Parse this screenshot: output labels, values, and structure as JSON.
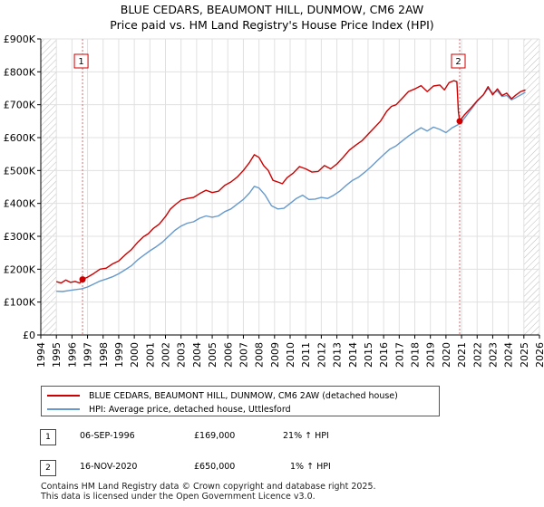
{
  "title_line1": "BLUE CEDARS, BEAUMONT HILL, DUNMOW, CM6 2AW",
  "title_line2": "Price paid vs. HM Land Registry's House Price Index (HPI)",
  "chart_data": {
    "type": "line",
    "xlim": [
      1994.0,
      2026.0
    ],
    "ylim": [
      0,
      900000
    ],
    "x_ticks": [
      1994,
      1995,
      1996,
      1997,
      1998,
      1999,
      2000,
      2001,
      2002,
      2003,
      2004,
      2005,
      2006,
      2007,
      2008,
      2009,
      2010,
      2011,
      2012,
      2013,
      2014,
      2015,
      2016,
      2017,
      2018,
      2019,
      2020,
      2021,
      2022,
      2023,
      2024,
      2025,
      2026
    ],
    "y_ticks": [
      {
        "value": 0,
        "label": "£0"
      },
      {
        "value": 100000,
        "label": "£100K"
      },
      {
        "value": 200000,
        "label": "£200K"
      },
      {
        "value": 300000,
        "label": "£300K"
      },
      {
        "value": 400000,
        "label": "£400K"
      },
      {
        "value": 500000,
        "label": "£500K"
      },
      {
        "value": 600000,
        "label": "£600K"
      },
      {
        "value": 700000,
        "label": "£700K"
      },
      {
        "value": 800000,
        "label": "£800K"
      },
      {
        "value": 900000,
        "label": "£900K"
      }
    ],
    "hatched_before": 1995.0,
    "hatched_after": 2025.0,
    "series": [
      {
        "name": "BLUE CEDARS, BEAUMONT HILL, DUNMOW, CM6 2AW (detached house)",
        "color": "#cc0000",
        "points": [
          [
            1995.0,
            162000
          ],
          [
            1995.3,
            158000
          ],
          [
            1995.6,
            167000
          ],
          [
            1995.9,
            160000
          ],
          [
            1996.2,
            163000
          ],
          [
            1996.5,
            158000
          ],
          [
            1996.68,
            169000
          ],
          [
            1997.0,
            176000
          ],
          [
            1997.4,
            187000
          ],
          [
            1997.8,
            200000
          ],
          [
            1998.2,
            203000
          ],
          [
            1998.6,
            216000
          ],
          [
            1999.0,
            225000
          ],
          [
            1999.4,
            243000
          ],
          [
            1999.8,
            259000
          ],
          [
            2000.2,
            281000
          ],
          [
            2000.6,
            299000
          ],
          [
            2000.9,
            308000
          ],
          [
            2001.2,
            323000
          ],
          [
            2001.6,
            337000
          ],
          [
            2002.0,
            360000
          ],
          [
            2002.3,
            382000
          ],
          [
            2002.6,
            395000
          ],
          [
            2003.0,
            410000
          ],
          [
            2003.4,
            415000
          ],
          [
            2003.8,
            418000
          ],
          [
            2004.2,
            430000
          ],
          [
            2004.6,
            440000
          ],
          [
            2005.0,
            433000
          ],
          [
            2005.4,
            437000
          ],
          [
            2005.8,
            455000
          ],
          [
            2006.2,
            465000
          ],
          [
            2006.6,
            480000
          ],
          [
            2007.0,
            500000
          ],
          [
            2007.4,
            525000
          ],
          [
            2007.7,
            548000
          ],
          [
            2008.0,
            540000
          ],
          [
            2008.3,
            515000
          ],
          [
            2008.6,
            500000
          ],
          [
            2008.9,
            470000
          ],
          [
            2009.2,
            465000
          ],
          [
            2009.5,
            460000
          ],
          [
            2009.8,
            478000
          ],
          [
            2010.2,
            492000
          ],
          [
            2010.6,
            512000
          ],
          [
            2011.0,
            505000
          ],
          [
            2011.4,
            495000
          ],
          [
            2011.8,
            497000
          ],
          [
            2012.2,
            515000
          ],
          [
            2012.6,
            505000
          ],
          [
            2013.0,
            520000
          ],
          [
            2013.4,
            540000
          ],
          [
            2013.8,
            562000
          ],
          [
            2014.2,
            577000
          ],
          [
            2014.6,
            590000
          ],
          [
            2015.0,
            610000
          ],
          [
            2015.4,
            630000
          ],
          [
            2015.8,
            650000
          ],
          [
            2016.2,
            680000
          ],
          [
            2016.5,
            695000
          ],
          [
            2016.8,
            700000
          ],
          [
            2017.2,
            720000
          ],
          [
            2017.6,
            740000
          ],
          [
            2018.0,
            748000
          ],
          [
            2018.4,
            758000
          ],
          [
            2018.8,
            740000
          ],
          [
            2019.2,
            757000
          ],
          [
            2019.6,
            760000
          ],
          [
            2019.9,
            745000
          ],
          [
            2020.2,
            767000
          ],
          [
            2020.5,
            773000
          ],
          [
            2020.7,
            770000
          ],
          [
            2020.8,
            678000
          ],
          [
            2020.88,
            650000
          ],
          [
            2021.2,
            670000
          ],
          [
            2021.6,
            690000
          ],
          [
            2022.0,
            712000
          ],
          [
            2022.4,
            730000
          ],
          [
            2022.7,
            755000
          ],
          [
            2023.0,
            730000
          ],
          [
            2023.3,
            748000
          ],
          [
            2023.6,
            728000
          ],
          [
            2023.9,
            735000
          ],
          [
            2024.2,
            718000
          ],
          [
            2024.5,
            730000
          ],
          [
            2024.8,
            740000
          ],
          [
            2025.1,
            745000
          ]
        ]
      },
      {
        "name": "HPI: Average price, detached house, Uttlesford",
        "color": "#6699cc",
        "points": [
          [
            1995.0,
            133000
          ],
          [
            1995.4,
            132000
          ],
          [
            1995.8,
            135000
          ],
          [
            1996.2,
            138000
          ],
          [
            1996.6,
            140000
          ],
          [
            1997.0,
            146000
          ],
          [
            1997.4,
            155000
          ],
          [
            1997.8,
            164000
          ],
          [
            1998.2,
            170000
          ],
          [
            1998.6,
            177000
          ],
          [
            1999.0,
            186000
          ],
          [
            1999.4,
            198000
          ],
          [
            1999.8,
            210000
          ],
          [
            2000.2,
            228000
          ],
          [
            2000.6,
            242000
          ],
          [
            2001.0,
            256000
          ],
          [
            2001.4,
            268000
          ],
          [
            2001.8,
            282000
          ],
          [
            2002.2,
            300000
          ],
          [
            2002.6,
            318000
          ],
          [
            2003.0,
            331000
          ],
          [
            2003.4,
            340000
          ],
          [
            2003.8,
            344000
          ],
          [
            2004.2,
            355000
          ],
          [
            2004.6,
            362000
          ],
          [
            2005.0,
            358000
          ],
          [
            2005.4,
            362000
          ],
          [
            2005.8,
            375000
          ],
          [
            2006.2,
            383000
          ],
          [
            2006.6,
            398000
          ],
          [
            2007.0,
            412000
          ],
          [
            2007.4,
            432000
          ],
          [
            2007.7,
            452000
          ],
          [
            2008.0,
            447000
          ],
          [
            2008.4,
            425000
          ],
          [
            2008.8,
            393000
          ],
          [
            2009.2,
            383000
          ],
          [
            2009.6,
            385000
          ],
          [
            2010.0,
            400000
          ],
          [
            2010.4,
            415000
          ],
          [
            2010.8,
            425000
          ],
          [
            2011.2,
            412000
          ],
          [
            2011.6,
            413000
          ],
          [
            2012.0,
            418000
          ],
          [
            2012.4,
            415000
          ],
          [
            2012.8,
            425000
          ],
          [
            2013.2,
            438000
          ],
          [
            2013.6,
            455000
          ],
          [
            2014.0,
            470000
          ],
          [
            2014.4,
            480000
          ],
          [
            2014.8,
            495000
          ],
          [
            2015.2,
            512000
          ],
          [
            2015.6,
            530000
          ],
          [
            2016.0,
            548000
          ],
          [
            2016.4,
            565000
          ],
          [
            2016.8,
            575000
          ],
          [
            2017.2,
            590000
          ],
          [
            2017.6,
            605000
          ],
          [
            2018.0,
            618000
          ],
          [
            2018.4,
            630000
          ],
          [
            2018.8,
            620000
          ],
          [
            2019.2,
            632000
          ],
          [
            2019.6,
            625000
          ],
          [
            2020.0,
            615000
          ],
          [
            2020.4,
            630000
          ],
          [
            2020.88,
            642000
          ],
          [
            2021.2,
            660000
          ],
          [
            2021.6,
            685000
          ],
          [
            2022.0,
            710000
          ],
          [
            2022.4,
            730000
          ],
          [
            2022.7,
            750000
          ],
          [
            2023.0,
            735000
          ],
          [
            2023.3,
            742000
          ],
          [
            2023.6,
            725000
          ],
          [
            2023.9,
            728000
          ],
          [
            2024.2,
            715000
          ],
          [
            2024.5,
            722000
          ],
          [
            2024.8,
            730000
          ],
          [
            2025.1,
            738000
          ]
        ]
      }
    ],
    "sales": [
      {
        "label": "1",
        "x": 1996.68,
        "y": 169000
      },
      {
        "label": "2",
        "x": 2020.88,
        "y": 650000
      }
    ]
  },
  "legend": {
    "series1": "BLUE CEDARS, BEAUMONT HILL, DUNMOW, CM6 2AW (detached house)",
    "series2": "HPI: Average price, detached house, Uttlesford"
  },
  "table": [
    {
      "marker": "1",
      "date": "06-SEP-1996",
      "price": "£169,000",
      "hpi": "21% ↑ HPI"
    },
    {
      "marker": "2",
      "date": "16-NOV-2020",
      "price": "£650,000",
      "hpi": "1% ↑ HPI"
    }
  ],
  "footer_line1": "Contains HM Land Registry data © Crown copyright and database right 2025.",
  "footer_line2": "This data is licensed under the Open Government Licence v3.0."
}
